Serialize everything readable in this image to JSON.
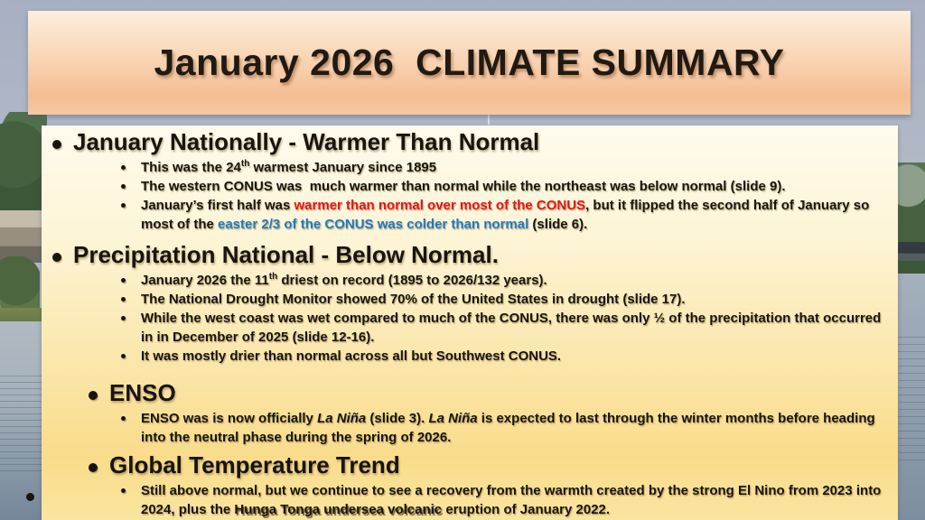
{
  "slide": {
    "title": "January 2026  CLIMATE SUMMARY"
  },
  "sections": {
    "s1": {
      "heading": "January Nationally - Warmer Than Normal",
      "b1": {
        "pre": "This was the 24",
        "sup": "th",
        "post": " warmest January since 1895"
      },
      "b2": "The western CONUS was  much warmer than normal while the northeast was below normal (slide 9).",
      "b3": {
        "pre": "January’s first half was ",
        "red": "warmer than normal over most of the CONUS",
        "mid": ", but it flipped the second half of January so most of the ",
        "blue": "easter 2/3 of the CONUS was colder than normal",
        "post": " (slide 6)."
      }
    },
    "s2": {
      "heading": "Precipitation National - Below Normal.",
      "b1": {
        "pre": "January 2026 the 11",
        "sup": "th",
        "post": " driest on record (1895 to 2026/132 years)."
      },
      "b2": "The National Drought Monitor showed 70% of the United States in drought (slide 17).",
      "b3": "While the west coast was wet compared to much of the CONUS, there was only ½ of the precipitation that occurred in in December of 2025 (slide 12-16).",
      "b4": "It was mostly drier than normal across all but Southwest CONUS."
    },
    "s3": {
      "heading": "ENSO",
      "b1": {
        "pre": "ENSO was is now officially ",
        "italic1": "La Niña",
        "mid": " (slide 3). ",
        "italic2": "La Niña",
        "post": " is expected to last through the winter months before heading into the neutral phase during the spring of 2026."
      }
    },
    "s4": {
      "heading": "Global Temperature Trend",
      "b1": {
        "pre": "Still above normal, but we continue to see a recovery from the warmth created by the strong El Nino from 2023 into 2024, plus the ",
        "emph": "Hunga Tonga undersea volcanic",
        "post": " eruption of January 2022."
      }
    }
  },
  "colors": {
    "red": "#ee1111",
    "blue": "#1f7ac0",
    "banner-peach": "#f4bd92",
    "panel-gold": "#f9dc8b"
  }
}
